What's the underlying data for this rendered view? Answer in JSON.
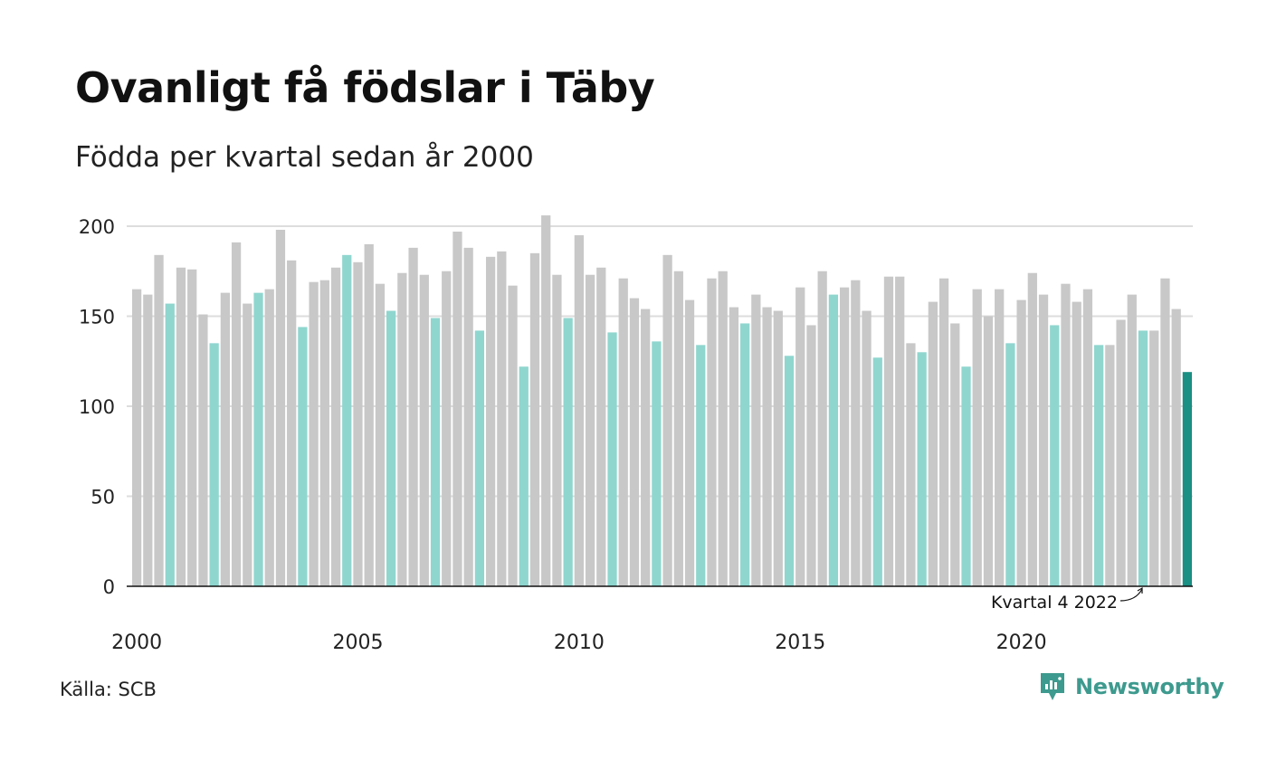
{
  "title": "Ovanligt få födslar i Täby",
  "subtitle": "Födda per kvartal sedan år 2000",
  "source": "Källa: SCB",
  "brand": {
    "name": "Newsworthy",
    "icon": "newsworthy-logo-icon"
  },
  "colors": {
    "bar_default": "#c8c8c8",
    "bar_same_quarter": "#8fd6cf",
    "bar_latest": "#1a8f84",
    "grid": "#dddddd",
    "axis": "#111111",
    "brand": "#3d9a8e"
  },
  "chart_data": {
    "type": "bar",
    "ylim": [
      0,
      200
    ],
    "y_ticks": [
      0,
      50,
      100,
      150,
      200
    ],
    "x_ticks": [
      "2000",
      "2005",
      "2010",
      "2015",
      "2020"
    ],
    "grid": true,
    "annotation": "Kvartal 4 2022",
    "start_year": 2000,
    "highlight_note": "teal bars mark quarter 4 of each year; darkest bar is the latest value",
    "values": [
      165,
      162,
      184,
      157,
      177,
      176,
      151,
      135,
      163,
      191,
      157,
      163,
      165,
      198,
      181,
      144,
      169,
      170,
      177,
      184,
      180,
      190,
      168,
      153,
      174,
      188,
      173,
      149,
      175,
      197,
      188,
      142,
      183,
      186,
      167,
      122,
      185,
      206,
      173,
      149,
      195,
      173,
      177,
      141,
      171,
      160,
      154,
      136,
      184,
      175,
      159,
      134,
      171,
      175,
      155,
      146,
      162,
      155,
      153,
      128,
      166,
      145,
      175,
      162,
      166,
      170,
      153,
      127,
      172,
      172,
      135,
      130,
      158,
      171,
      146,
      122,
      165,
      150,
      165,
      135,
      159,
      174,
      162,
      145,
      168,
      158,
      165,
      134,
      134,
      148,
      162,
      142,
      142,
      171,
      154,
      119
    ]
  }
}
